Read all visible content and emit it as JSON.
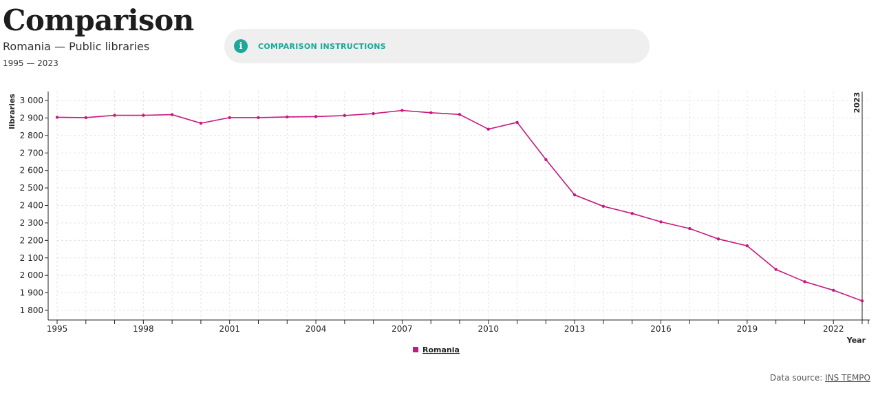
{
  "header": {
    "title": "Comparison",
    "subtitle": "Romania — Public libraries",
    "year_range": "1995 — 2023",
    "instructions_label": "COMPARISON INSTRUCTIONS",
    "info_icon": "info-icon"
  },
  "footer": {
    "source_label": "Data source:",
    "source_link": "INS TEMPO"
  },
  "colors": {
    "series": "#c8177f",
    "accent": "#1aa899"
  },
  "chart_data": {
    "type": "line",
    "ylabel": "libraries",
    "xlabel": "Year",
    "xlim": [
      1995,
      2023
    ],
    "ylim": [
      1750,
      3050
    ],
    "yticks": [
      1800,
      1900,
      2000,
      2100,
      2200,
      2300,
      2400,
      2500,
      2600,
      2700,
      2800,
      2900,
      3000
    ],
    "ytick_labels": [
      "1 800",
      "1 900",
      "2 000",
      "2 100",
      "2 200",
      "2 300",
      "2 400",
      "2 500",
      "2 600",
      "2 700",
      "2 800",
      "2 900",
      "3 000"
    ],
    "xtick_labels": [
      "1995",
      "1998",
      "2001",
      "2004",
      "2007",
      "2010",
      "2013",
      "2016",
      "2019",
      "2022"
    ],
    "marker_year": "2023",
    "grid": true,
    "legend_position": "bottom-center",
    "series": [
      {
        "name": "Romania",
        "x": [
          1995,
          1996,
          1997,
          1998,
          1999,
          2000,
          2001,
          2002,
          2003,
          2004,
          2005,
          2006,
          2007,
          2008,
          2009,
          2010,
          2011,
          2012,
          2013,
          2014,
          2015,
          2016,
          2017,
          2018,
          2019,
          2020,
          2021,
          2022,
          2023
        ],
        "values": [
          2904,
          2902,
          2915,
          2915,
          2919,
          2870,
          2902,
          2902,
          2906,
          2908,
          2914,
          2925,
          2943,
          2930,
          2920,
          2836,
          2875,
          2662,
          2460,
          2395,
          2354,
          2306,
          2268,
          2208,
          2169,
          2034,
          1964,
          1915,
          1854
        ]
      }
    ]
  }
}
